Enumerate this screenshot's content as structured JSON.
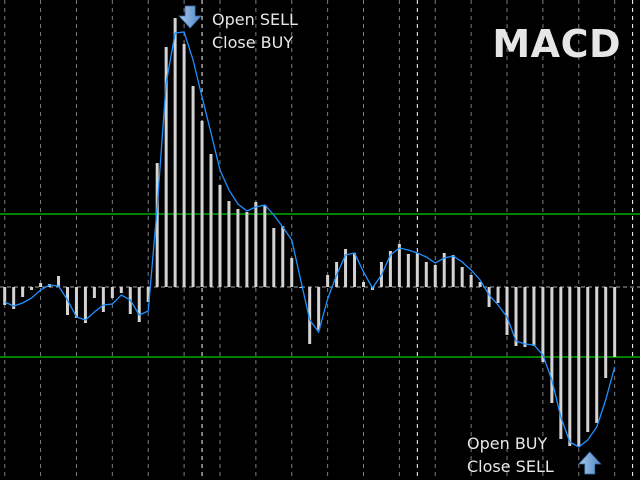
{
  "title": "MACD",
  "signals": {
    "sell": {
      "line1": "Open SELL",
      "line2": "Close BUY",
      "icon": "arrow-down-icon",
      "bar_index": 20
    },
    "buy": {
      "line1": "Open BUY",
      "line2": "Close SELL",
      "icon": "arrow-up-icon",
      "bar_index": 65
    }
  },
  "colors": {
    "background": "#000000",
    "histogram": "#d3d3d3",
    "signal_line": "#1e90ff",
    "levels": "#008000",
    "grid": "#a0a8b0",
    "arrow": "#4f86c6"
  },
  "chart_data": {
    "type": "bar",
    "title": "MACD",
    "xlabel": "",
    "ylabel": "",
    "ylim": [
      -193,
      287
    ],
    "grid": true,
    "levels": [
      73,
      -70
    ],
    "series": [
      {
        "type": "bar",
        "values": [
          -18,
          -22,
          -10,
          -3,
          4,
          3,
          11,
          -28,
          -31,
          -36,
          -11,
          -25,
          -11,
          -6,
          -27,
          -35,
          -15,
          124,
          240,
          269,
          243,
          201,
          166,
          133,
          102,
          86,
          78,
          75,
          85,
          82,
          59,
          61,
          29,
          -1,
          -57,
          -43,
          12,
          25,
          38,
          34,
          5,
          -3,
          25,
          36,
          43,
          33,
          34,
          25,
          22,
          34,
          32,
          20,
          12,
          5,
          -20,
          -16,
          -48,
          -59,
          -60,
          -59,
          -75,
          -116,
          -152,
          -159,
          -160,
          -145,
          -136,
          -91,
          -70
        ]
      },
      {
        "type": "line",
        "values": [
          -15,
          -19,
          -16,
          -11,
          -3,
          2,
          1,
          -13,
          -30,
          -33,
          -25,
          -18,
          -17,
          -8,
          -13,
          -28,
          -24,
          80,
          204,
          254,
          255,
          227,
          190,
          154,
          117,
          97,
          83,
          76,
          80,
          82,
          72,
          60,
          47,
          7,
          -33,
          -45,
          -12,
          12,
          32,
          34,
          15,
          -1,
          12,
          32,
          39,
          37,
          34,
          30,
          24,
          29,
          31,
          25,
          17,
          7,
          -8,
          -18,
          -30,
          -54,
          -57,
          -58,
          -68,
          -93,
          -130,
          -155,
          -160,
          -153,
          -140,
          -113,
          -80
        ]
      }
    ]
  }
}
